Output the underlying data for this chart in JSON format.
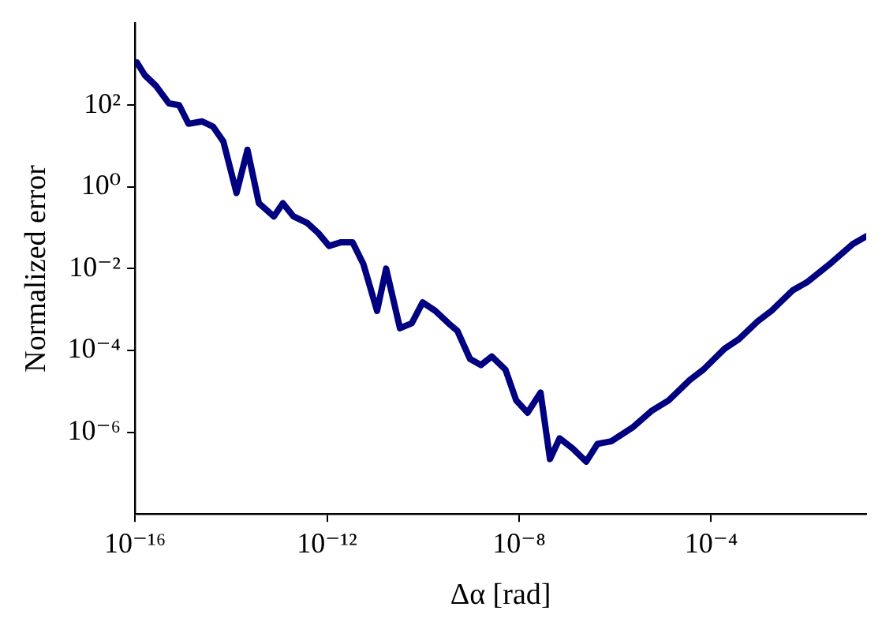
{
  "chart_data": {
    "type": "line",
    "xlabel": "Δα [rad]",
    "ylabel": "Normalized error",
    "log": "xy",
    "grid": false,
    "legend": false,
    "marker": "none",
    "line_style": "solid",
    "xlim": [
      1e-16,
      0.17
    ],
    "ylim": [
      1e-08,
      10000.0
    ],
    "xticks": [
      {
        "value": 1e-16,
        "label": "10⁻¹⁶"
      },
      {
        "value": 1e-12,
        "label": "10⁻¹²"
      },
      {
        "value": 1e-08,
        "label": "10⁻⁸"
      },
      {
        "value": 0.0001,
        "label": "10⁻⁴"
      }
    ],
    "yticks": [
      {
        "value": 1e-06,
        "label": "10⁻⁶"
      },
      {
        "value": 0.0001,
        "label": "10⁻⁴"
      },
      {
        "value": 0.01,
        "label": "10⁻²"
      },
      {
        "value": 1,
        "label": "10⁰"
      },
      {
        "value": 100,
        "label": "10²"
      }
    ],
    "series": [
      {
        "color": "#000080",
        "x": [
          1.1e-16,
          1.6e-16,
          2.7e-16,
          5.1e-16,
          8.3e-16,
          1.3e-15,
          2.5e-15,
          4.2e-15,
          6.9e-15,
          1.3e-14,
          2.2e-14,
          3.8e-14,
          7.8e-14,
          1.2e-13,
          2e-13,
          3.9e-13,
          6.6e-13,
          1.1e-12,
          1.9e-12,
          3.4e-12,
          5.7e-12,
          1.1e-11,
          1.7e-11,
          3.3e-11,
          5.8e-11,
          9.8e-11,
          1.8e-10,
          3.4e-10,
          5.2e-10,
          9.5e-10,
          1.6e-09,
          2.7e-09,
          5.2e-09,
          8.7e-09,
          1.5e-08,
          2.8e-08,
          4.4e-08,
          7e-08,
          1.3e-07,
          2.5e-07,
          4.3e-07,
          8.3e-07,
          2.3e-06,
          5.9e-06,
          1.3e-05,
          3.6e-05,
          6.9e-05,
          0.00019,
          0.00038,
          0.00094,
          0.0018,
          0.0051,
          0.0098,
          0.032,
          0.089,
          0.17
        ],
        "values": [
          1100,
          540,
          300,
          110,
          100,
          35,
          40,
          30,
          13,
          0.71,
          8.1,
          0.4,
          0.19,
          0.4,
          0.19,
          0.13,
          0.074,
          0.036,
          0.044,
          0.044,
          0.013,
          0.00093,
          0.01,
          0.00035,
          0.00046,
          0.0015,
          0.00093,
          0.00046,
          0.0003,
          6.2e-05,
          4.4e-05,
          7.1e-05,
          3.4e-05,
          6e-06,
          3e-06,
          9.3e-06,
          2.2e-07,
          7.1e-07,
          4e-07,
          1.9e-07,
          5.2e-07,
          6e-07,
          1.3e-06,
          3.4e-06,
          6e-06,
          1.9e-05,
          3.4e-05,
          0.00011,
          0.00019,
          0.00052,
          0.00093,
          0.003,
          0.0046,
          0.014,
          0.04,
          0.062
        ]
      }
    ]
  }
}
